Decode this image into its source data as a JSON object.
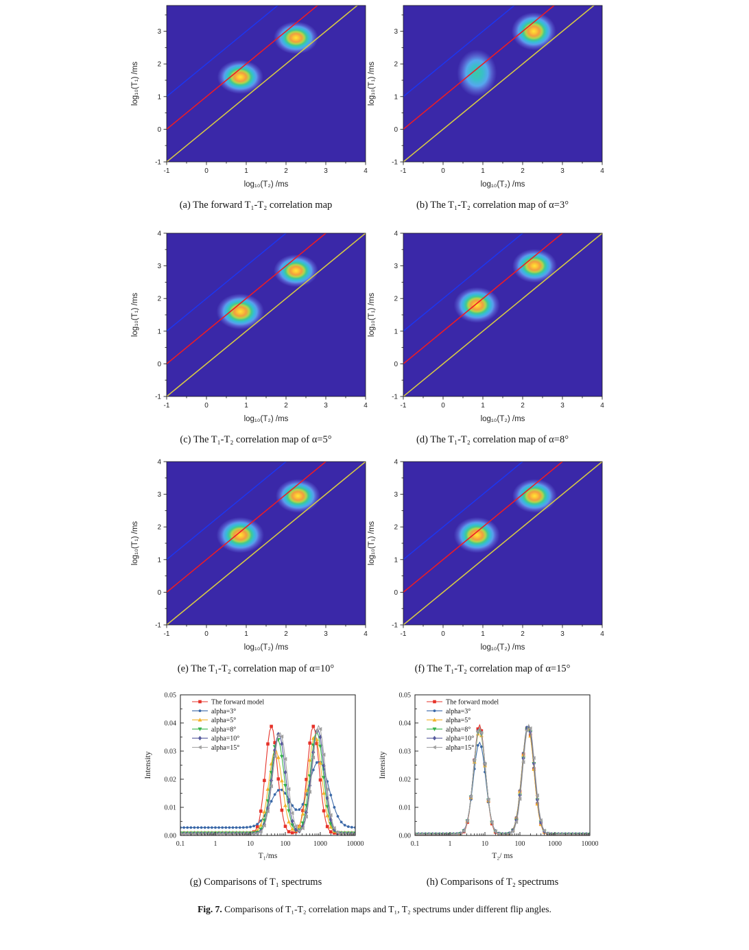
{
  "figure": {
    "caption_prefix": "Fig. 7.",
    "caption_text": " Comparisons of T₁-T₂ correlation maps and T₁, T₂ spectrums under different flip angles."
  },
  "map_style": {
    "background": "#3a28a8",
    "line_blue": "#1d35ee",
    "line_red": "#ed1c24",
    "line_yellow": "#d8ca44",
    "tick_color": "#222222"
  },
  "chart_data": [
    {
      "id": "map-a",
      "type": "heatmap",
      "title": "(a) The forward T₁-T₂ correlation map",
      "xlabel": "log₁₀(T₂) /ms",
      "ylabel": "log₁₀(T₁) /ms",
      "xlim": [
        -1,
        4
      ],
      "ylim": [
        -1,
        3.79
      ],
      "xticks": [
        -1,
        0,
        1,
        2,
        3,
        4
      ],
      "yticks": [
        -1,
        0,
        1,
        2,
        3
      ],
      "diagonal_lines": [
        {
          "slope": 1,
          "offset": 2,
          "color": "#1d35ee"
        },
        {
          "slope": 1,
          "offset": 1,
          "color": "#ed1c24"
        },
        {
          "slope": 1,
          "offset": 0,
          "color": "#d8ca44"
        }
      ],
      "peaks": [
        {
          "log10_T2": 0.85,
          "log10_T1": 1.6,
          "rx": 0.58,
          "ry": 0.52,
          "palette": "warm"
        },
        {
          "log10_T2": 2.25,
          "log10_T1": 2.8,
          "rx": 0.56,
          "ry": 0.5,
          "palette": "warm"
        }
      ]
    },
    {
      "id": "map-b",
      "type": "heatmap",
      "title": "(b) The T₁-T₂ correlation map of α=3°",
      "xlabel": "log₁₀(T₂) /ms",
      "ylabel": "log₁₀(T₁) /ms",
      "xlim": [
        -1,
        4
      ],
      "ylim": [
        -1,
        3.79
      ],
      "xticks": [
        -1,
        0,
        1,
        2,
        3,
        4
      ],
      "yticks": [
        -1,
        0,
        1,
        2,
        3
      ],
      "diagonal_lines": [
        {
          "slope": 1,
          "offset": 2,
          "color": "#1d35ee"
        },
        {
          "slope": 1,
          "offset": 1,
          "color": "#ed1c24"
        },
        {
          "slope": 1,
          "offset": 0,
          "color": "#d8ca44"
        }
      ],
      "peaks": [
        {
          "log10_T2": 0.85,
          "log10_T1": 1.72,
          "rx": 0.5,
          "ry": 0.72,
          "palette": "teal"
        },
        {
          "log10_T2": 2.28,
          "log10_T1": 3.0,
          "rx": 0.56,
          "ry": 0.58,
          "palette": "warm"
        }
      ]
    },
    {
      "id": "map-c",
      "type": "heatmap",
      "title": "(c) The T₁-T₂ correlation map of α=5°",
      "xlabel": "log₁₀(T₂) /ms",
      "ylabel": "log₁₀(T₁) /ms",
      "xlim": [
        -1,
        4
      ],
      "ylim": [
        -1,
        4
      ],
      "xticks": [
        -1,
        0,
        1,
        2,
        3,
        4
      ],
      "yticks": [
        -1,
        0,
        1,
        2,
        3,
        4
      ],
      "diagonal_lines": [
        {
          "slope": 1,
          "offset": 2,
          "color": "#1d35ee"
        },
        {
          "slope": 1,
          "offset": 1,
          "color": "#ed1c24"
        },
        {
          "slope": 1,
          "offset": 0,
          "color": "#d8ca44"
        }
      ],
      "peaks": [
        {
          "log10_T2": 0.85,
          "log10_T1": 1.6,
          "rx": 0.6,
          "ry": 0.55,
          "palette": "warm"
        },
        {
          "log10_T2": 2.25,
          "log10_T1": 2.85,
          "rx": 0.56,
          "ry": 0.5,
          "palette": "warm"
        }
      ]
    },
    {
      "id": "map-d",
      "type": "heatmap",
      "title": "(d) The T₁-T₂ correlation map of α=8°",
      "xlabel": "log₁₀(T₂) /ms",
      "ylabel": "log₁₀(T₁) /ms",
      "xlim": [
        -1,
        4
      ],
      "ylim": [
        -1,
        4
      ],
      "xticks": [
        -1,
        0,
        1,
        2,
        3,
        4
      ],
      "yticks": [
        -1,
        0,
        1,
        2,
        3,
        4
      ],
      "diagonal_lines": [
        {
          "slope": 1,
          "offset": 2,
          "color": "#1d35ee"
        },
        {
          "slope": 1,
          "offset": 1,
          "color": "#ed1c24"
        },
        {
          "slope": 1,
          "offset": 0,
          "color": "#d8ca44"
        }
      ],
      "peaks": [
        {
          "log10_T2": 0.85,
          "log10_T1": 1.8,
          "rx": 0.58,
          "ry": 0.55,
          "palette": "warm"
        },
        {
          "log10_T2": 2.3,
          "log10_T1": 3.0,
          "rx": 0.56,
          "ry": 0.52,
          "palette": "warm"
        }
      ]
    },
    {
      "id": "map-e",
      "type": "heatmap",
      "title": "(e) The T₁-T₂ correlation map of α=10°",
      "xlabel": "log₁₀(T₂) /ms",
      "ylabel": "log₁₀(T₁) /ms",
      "xlim": [
        -1,
        4
      ],
      "ylim": [
        -1,
        4
      ],
      "xticks": [
        -1,
        0,
        1,
        2,
        3,
        4
      ],
      "yticks": [
        -1,
        0,
        1,
        2,
        3,
        4
      ],
      "diagonal_lines": [
        {
          "slope": 1,
          "offset": 2,
          "color": "#1d35ee"
        },
        {
          "slope": 1,
          "offset": 1,
          "color": "#ed1c24"
        },
        {
          "slope": 1,
          "offset": 0,
          "color": "#d8ca44"
        }
      ],
      "peaks": [
        {
          "log10_T2": 0.85,
          "log10_T1": 1.75,
          "rx": 0.6,
          "ry": 0.55,
          "palette": "warm"
        },
        {
          "log10_T2": 2.3,
          "log10_T1": 2.95,
          "rx": 0.56,
          "ry": 0.52,
          "palette": "warm"
        }
      ]
    },
    {
      "id": "map-f",
      "type": "heatmap",
      "title": "(f) The T₁-T₂ correlation map of α=15°",
      "xlabel": "log₁₀(T₂) /ms",
      "ylabel": "log₁₀(T₁) /ms",
      "xlim": [
        -1,
        4
      ],
      "ylim": [
        -1,
        4
      ],
      "xticks": [
        -1,
        0,
        1,
        2,
        3,
        4
      ],
      "yticks": [
        -1,
        0,
        1,
        2,
        3,
        4
      ],
      "diagonal_lines": [
        {
          "slope": 1,
          "offset": 2,
          "color": "#1d35ee"
        },
        {
          "slope": 1,
          "offset": 1,
          "color": "#ed1c24"
        },
        {
          "slope": 1,
          "offset": 0,
          "color": "#d8ca44"
        }
      ],
      "peaks": [
        {
          "log10_T2": 0.85,
          "log10_T1": 1.75,
          "rx": 0.58,
          "ry": 0.55,
          "palette": "warm"
        },
        {
          "log10_T2": 2.3,
          "log10_T1": 2.95,
          "rx": 0.56,
          "ry": 0.52,
          "palette": "warm"
        }
      ]
    },
    {
      "id": "spectrum-t1",
      "type": "line",
      "title": "(g) Comparisons of T₁ spectrums",
      "xlabel": "T₁/ms",
      "ylabel": "Intensity",
      "xscale": "log",
      "xlim_ms": [
        0.1,
        10000
      ],
      "ylim": [
        0,
        0.05
      ],
      "xticks_ms": [
        0.1,
        1,
        10,
        100,
        1000,
        10000
      ],
      "yticks": [
        0,
        0.01,
        0.02,
        0.03,
        0.04,
        0.05
      ],
      "legend_position": "top-left",
      "series": [
        {
          "name": "The forward model",
          "color": "#e63229",
          "marker": "square",
          "baseline": 0.0008,
          "peaks": [
            {
              "center_ms": 40,
              "height": 0.038,
              "sigma_decades": 0.17
            },
            {
              "center_ms": 630,
              "height": 0.038,
              "sigma_decades": 0.17
            }
          ]
        },
        {
          "name": "alpha=3°",
          "color": "#3a68a8",
          "marker": "circle",
          "baseline": 0.0028,
          "peaks": [
            {
              "center_ms": 72,
              "height": 0.0135,
              "sigma_decades": 0.3
            },
            {
              "center_ms": 900,
              "height": 0.0235,
              "sigma_decades": 0.29
            }
          ]
        },
        {
          "name": "alpha=5°",
          "color": "#f2b32e",
          "marker": "triangle-up",
          "baseline": 0.001,
          "peaks": [
            {
              "center_ms": 52,
              "height": 0.0295,
              "sigma_decades": 0.19
            },
            {
              "center_ms": 700,
              "height": 0.0345,
              "sigma_decades": 0.19
            }
          ]
        },
        {
          "name": "alpha=8°",
          "color": "#35b44a",
          "marker": "triangle-down",
          "baseline": 0.0008,
          "peaks": [
            {
              "center_ms": 60,
              "height": 0.0335,
              "sigma_decades": 0.19
            },
            {
              "center_ms": 790,
              "height": 0.036,
              "sigma_decades": 0.185
            }
          ]
        },
        {
          "name": "alpha=10°",
          "color": "#565a9d",
          "marker": "diamond",
          "baseline": 0.0006,
          "peaks": [
            {
              "center_ms": 65,
              "height": 0.0355,
              "sigma_decades": 0.19
            },
            {
              "center_ms": 850,
              "height": 0.037,
              "sigma_decades": 0.185
            }
          ]
        },
        {
          "name": "alpha=15°",
          "color": "#a0a0a0",
          "marker": "triangle-left",
          "baseline": 0.0005,
          "peaks": [
            {
              "center_ms": 70,
              "height": 0.036,
              "sigma_decades": 0.2
            },
            {
              "center_ms": 900,
              "height": 0.0385,
              "sigma_decades": 0.185
            }
          ]
        }
      ]
    },
    {
      "id": "spectrum-t2",
      "type": "line",
      "title": "(h) Comparisons of T₂ spectrums",
      "xlabel": "T₂/ ms",
      "ylabel": "Intensity",
      "xscale": "log",
      "xlim_ms": [
        0.1,
        10000
      ],
      "ylim": [
        0,
        0.05
      ],
      "xticks_ms": [
        0.1,
        1,
        10,
        100,
        1000,
        10000
      ],
      "yticks": [
        0,
        0.01,
        0.02,
        0.03,
        0.04,
        0.05
      ],
      "legend_position": "top-left",
      "series": [
        {
          "name": "The forward model",
          "color": "#e63229",
          "marker": "square",
          "baseline": 0.0003,
          "peaks": [
            {
              "center_ms": 7,
              "height": 0.039,
              "sigma_decades": 0.165
            },
            {
              "center_ms": 170,
              "height": 0.0385,
              "sigma_decades": 0.17
            }
          ]
        },
        {
          "name": "alpha=3°",
          "color": "#3a68a8",
          "marker": "circle",
          "baseline": 0.0006,
          "peaks": [
            {
              "center_ms": 7,
              "height": 0.0325,
              "sigma_decades": 0.175
            },
            {
              "center_ms": 170,
              "height": 0.0385,
              "sigma_decades": 0.17
            }
          ]
        },
        {
          "name": "alpha=5°",
          "color": "#f2b32e",
          "marker": "triangle-up",
          "baseline": 0.0004,
          "peaks": [
            {
              "center_ms": 7,
              "height": 0.037,
              "sigma_decades": 0.17
            },
            {
              "center_ms": 170,
              "height": 0.038,
              "sigma_decades": 0.17
            }
          ]
        },
        {
          "name": "alpha=8°",
          "color": "#35b44a",
          "marker": "triangle-down",
          "baseline": 0.0004,
          "peaks": [
            {
              "center_ms": 7,
              "height": 0.0375,
              "sigma_decades": 0.17
            },
            {
              "center_ms": 175,
              "height": 0.0385,
              "sigma_decades": 0.17
            }
          ]
        },
        {
          "name": "alpha=10°",
          "color": "#565a9d",
          "marker": "diamond",
          "baseline": 0.0004,
          "peaks": [
            {
              "center_ms": 7,
              "height": 0.038,
              "sigma_decades": 0.17
            },
            {
              "center_ms": 175,
              "height": 0.0385,
              "sigma_decades": 0.17
            }
          ]
        },
        {
          "name": "alpha=15°",
          "color": "#a0a0a0",
          "marker": "triangle-left",
          "baseline": 0.0004,
          "peaks": [
            {
              "center_ms": 7,
              "height": 0.038,
              "sigma_decades": 0.17
            },
            {
              "center_ms": 180,
              "height": 0.039,
              "sigma_decades": 0.17
            }
          ]
        }
      ]
    }
  ]
}
